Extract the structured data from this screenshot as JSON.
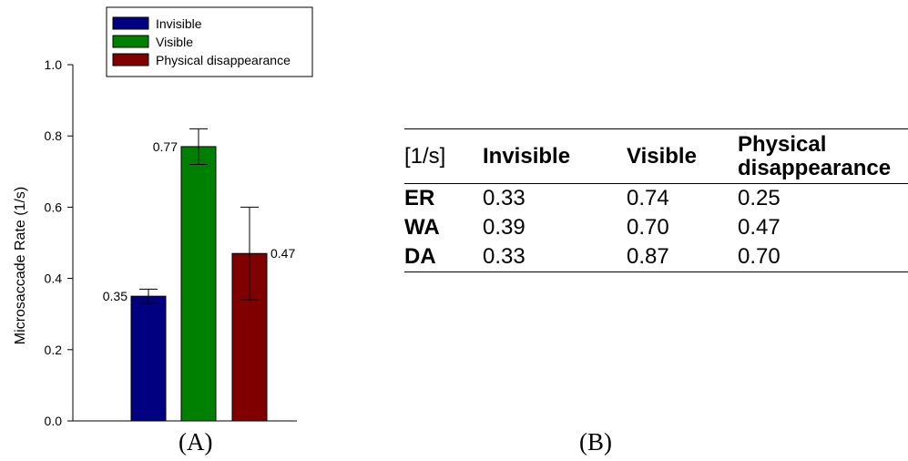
{
  "chart_data": {
    "type": "bar",
    "categories": [
      "Invisible",
      "Visible",
      "Physical disappearance"
    ],
    "values": [
      0.35,
      0.77,
      0.47
    ],
    "error": [
      0.02,
      0.05,
      0.13
    ],
    "data_labels": [
      "0.35",
      "0.77",
      "0.47"
    ],
    "colors": [
      "#000080",
      "#008000",
      "#800000"
    ],
    "ylabel": "Microsaccade Rate (1/s)",
    "xlabel": "",
    "ylim": [
      0,
      1.0
    ],
    "yticks": [
      "0.0",
      "0.2",
      "0.4",
      "0.6",
      "0.8",
      "1.0"
    ],
    "legend": {
      "placement": "top",
      "entries": [
        "Invisible",
        "Visible",
        "Physical disappearance"
      ]
    }
  },
  "panels": {
    "a_label": "(A)",
    "b_label": "(B)"
  },
  "table": {
    "headers": [
      "[1/s]",
      "Invisible",
      "Visible",
      "Physical disappearance"
    ],
    "rows": [
      [
        "ER",
        "0.33",
        "0.74",
        "0.25"
      ],
      [
        "WA",
        "0.39",
        "0.70",
        "0.47"
      ],
      [
        "DA",
        "0.33",
        "0.87",
        "0.70"
      ]
    ]
  }
}
